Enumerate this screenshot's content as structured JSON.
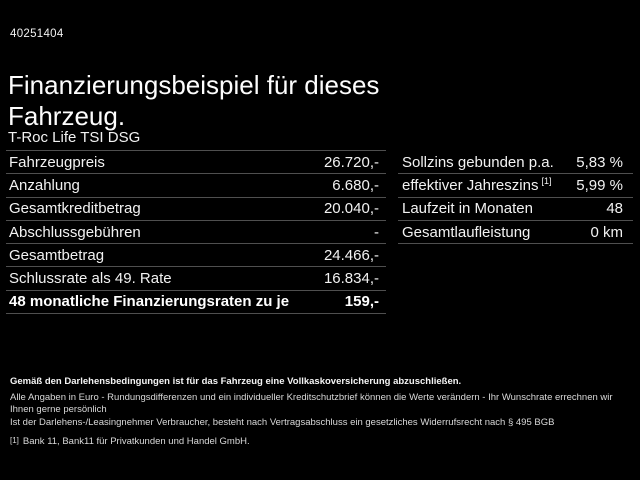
{
  "page": {
    "background_color": "#000000",
    "text_color": "#ffffff",
    "divider_color": "#4f4f4f"
  },
  "header": {
    "vehicle_id": "40251404",
    "title": "Finanzierungsbeispiel für dieses Fahrzeug.",
    "model": "T-Roc Life TSI DSG"
  },
  "finance_table": {
    "rows": [
      {
        "label": "Fahrzeugpreis",
        "value": "26.720,-"
      },
      {
        "label": "Anzahlung",
        "value": "6.680,-"
      },
      {
        "label": "Gesamtkreditbetrag",
        "value": "20.040,-"
      },
      {
        "label": "Abschlussgebühren",
        "value": "-"
      },
      {
        "label": "Gesamtbetrag",
        "value": "24.466,-"
      },
      {
        "label": "Schlussrate als 49. Rate",
        "value": "16.834,-"
      },
      {
        "label": "48 monatliche Finanzierungsraten zu je",
        "value": "159,-"
      }
    ]
  },
  "conditions_table": {
    "rows": [
      {
        "label": "Sollzins gebunden p.a.",
        "value": "5,83 %"
      },
      {
        "label": "effektiver Jahreszins",
        "sup": "[1]",
        "value": "5,99 %"
      },
      {
        "label": "Laufzeit in Monaten",
        "value": "48"
      },
      {
        "label": "Gesamtlaufleistung",
        "value": "0 km"
      }
    ]
  },
  "footer": {
    "insurance_note": "Gemäß den Darlehensbedingungen ist für das Fahrzeug eine Vollkaskoversicherung abzuschließen.",
    "disclaimer_1": "Alle Angaben in Euro - Rundungsdifferenzen und ein individueller Kreditschutzbrief können die Werte verändern - Ihr Wunschrate errechnen wir Ihnen gerne persönlich",
    "disclaimer_2": "Ist der Darlehens-/Leasingnehmer Verbraucher, besteht nach Vertragsabschluss ein gesetzliches Widerrufsrecht nach § 495 BGB",
    "footnote_marker": "[1]",
    "footnote": "Bank 11, Bank11 für Privatkunden und Handel GmbH."
  }
}
